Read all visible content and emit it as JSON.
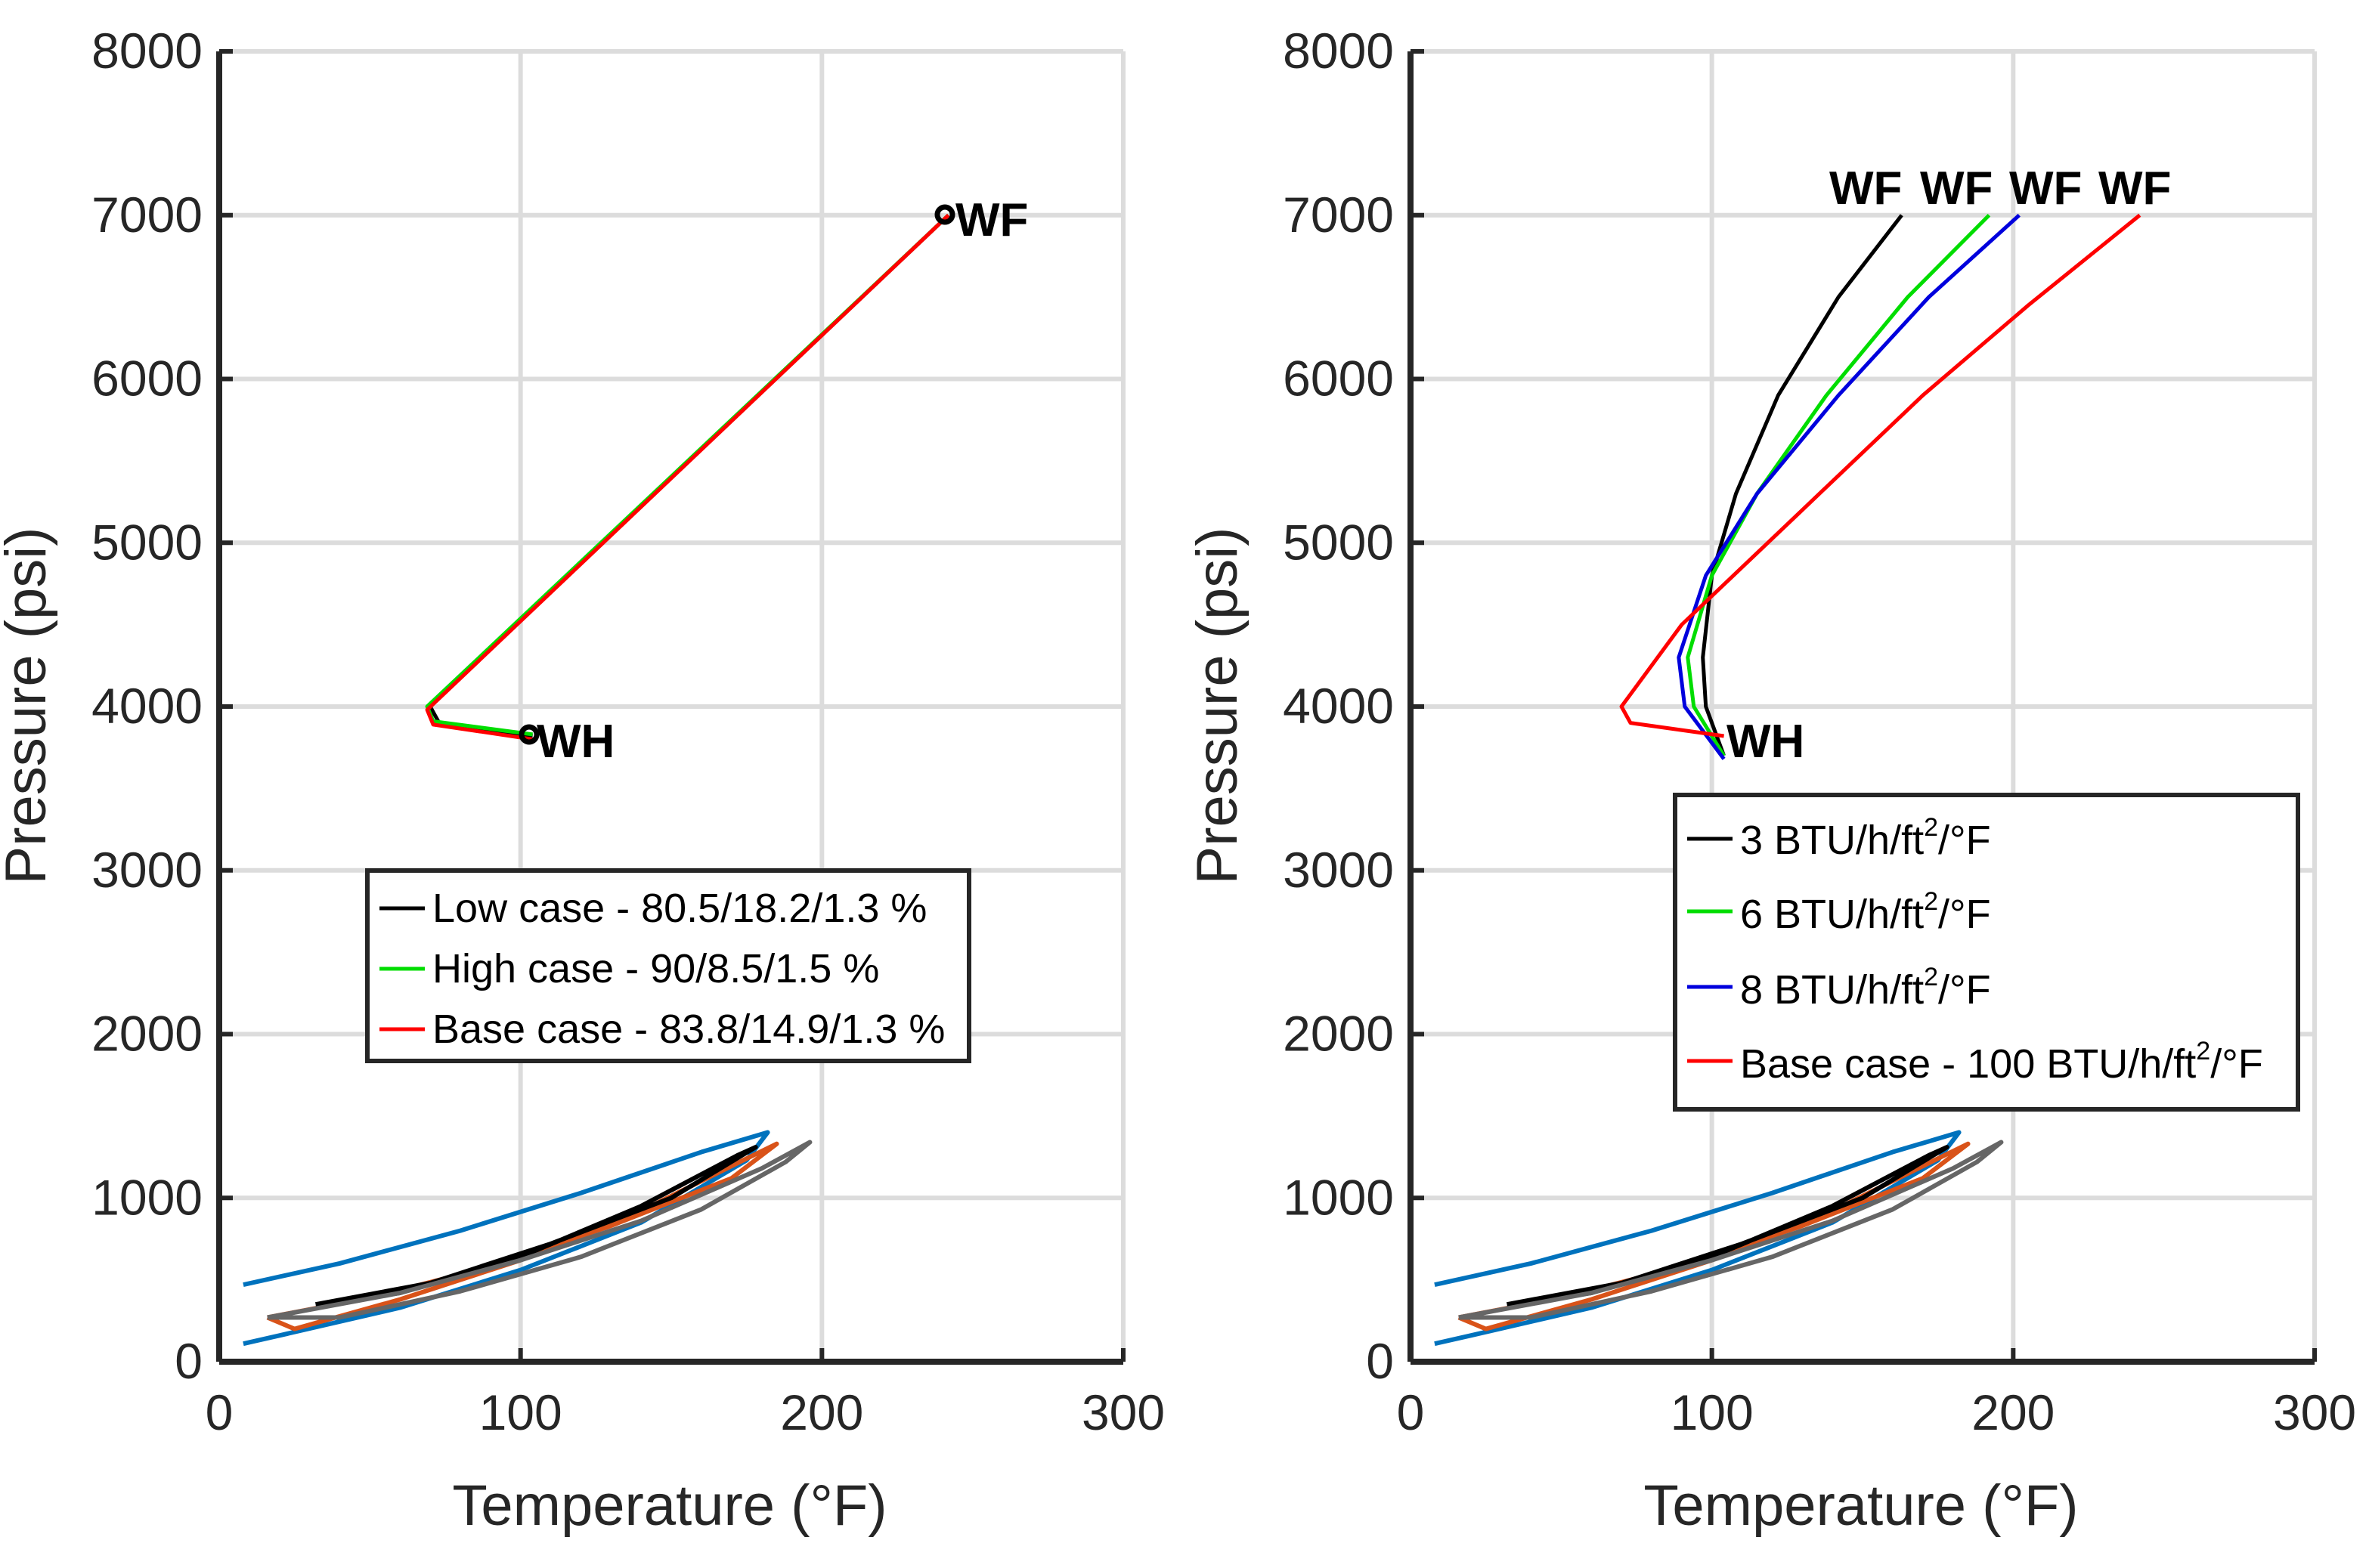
{
  "chart_data": [
    {
      "type": "line",
      "xlabel": "Temperature (°F)",
      "ylabel": "Pressure (psi)",
      "xlim": [
        0,
        300
      ],
      "ylim": [
        0,
        8000
      ],
      "xticks": [
        "0",
        "100",
        "200",
        "300"
      ],
      "yticks": [
        "0",
        "1000",
        "2000",
        "3000",
        "4000",
        "5000",
        "6000",
        "7000",
        "8000"
      ],
      "grid": true,
      "series": [
        {
          "name": "Low case - 80.5/18.2/1.3 %",
          "color": "#000000",
          "x": [
            242,
            70,
            73,
            104
          ],
          "y": [
            7000,
            4000,
            3900,
            3820
          ]
        },
        {
          "name": "High case - 90/8.5/1.5 %",
          "color": "#00dd00",
          "x": [
            242,
            69,
            71,
            104
          ],
          "y": [
            7000,
            4000,
            3910,
            3830
          ]
        },
        {
          "name": "Base case - 83.8/14.9/1.3 %",
          "color": "#ff0000",
          "x": [
            242,
            69,
            71,
            104
          ],
          "y": [
            7000,
            3980,
            3890,
            3800
          ]
        }
      ],
      "phase_envelopes": [
        {
          "color": "#0072bd",
          "x": [
            8,
            40,
            80,
            120,
            160,
            182,
            175,
            140,
            100,
            60,
            20,
            8
          ],
          "y": [
            470,
            600,
            800,
            1030,
            1280,
            1400,
            1230,
            850,
            560,
            330,
            160,
            110
          ]
        },
        {
          "color": "#d95319",
          "x": [
            16,
            50,
            90,
            130,
            170,
            185,
            175,
            140,
            100,
            60,
            25,
            16
          ],
          "y": [
            270,
            390,
            580,
            830,
            1120,
            1330,
            1240,
            920,
            620,
            380,
            200,
            270
          ]
        },
        {
          "color": "#000000",
          "x": [
            32,
            70,
            110,
            150,
            178,
            172,
            140,
            100,
            60,
            32
          ],
          "y": [
            350,
            480,
            720,
            1000,
            1310,
            1260,
            950,
            640,
            420,
            350
          ]
        },
        {
          "color": "#666666",
          "x": [
            16,
            60,
            100,
            140,
            180,
            196,
            188,
            160,
            120,
            80,
            40,
            16
          ],
          "y": [
            270,
            420,
            620,
            860,
            1180,
            1340,
            1220,
            930,
            640,
            430,
            270,
            270
          ]
        }
      ],
      "markers": [
        {
          "x": 242,
          "y": 7000,
          "label": "WF"
        },
        {
          "x": 104,
          "y": 3810,
          "label": "WH"
        }
      ],
      "legend": "center"
    },
    {
      "type": "line",
      "xlabel": "Temperature (°F)",
      "ylabel": "Pressure (psi)",
      "xlim": [
        0,
        300
      ],
      "ylim": [
        0,
        8000
      ],
      "xticks": [
        "0",
        "100",
        "200",
        "300"
      ],
      "yticks": [
        "0",
        "1000",
        "2000",
        "3000",
        "4000",
        "5000",
        "6000",
        "7000",
        "8000"
      ],
      "grid": true,
      "series": [
        {
          "name": "3 BTU/h/ft",
          "sup": "2",
          "tail": "/°F",
          "color": "#000000",
          "x": [
            104,
            98,
            97,
            100,
            108,
            122,
            142,
            163
          ],
          "y": [
            3700,
            4000,
            4300,
            4800,
            5300,
            5900,
            6500,
            7000
          ]
        },
        {
          "name": "6 BTU/h/ft",
          "sup": "2",
          "tail": "/°F",
          "color": "#00dd00",
          "x": [
            104,
            94,
            92,
            100,
            115,
            138,
            165,
            192
          ],
          "y": [
            3700,
            4000,
            4300,
            4800,
            5300,
            5900,
            6500,
            7000
          ]
        },
        {
          "name": "8 BTU/h/ft",
          "sup": "2",
          "tail": "/°F",
          "color": "#0000dd",
          "x": [
            104,
            91,
            89,
            98,
            115,
            142,
            172,
            202
          ],
          "y": [
            3680,
            4000,
            4300,
            4800,
            5300,
            5900,
            6500,
            7000
          ]
        },
        {
          "name": "Base case - 100 BTU/h/ft",
          "sup": "2",
          "tail": "/°F",
          "color": "#ff0000",
          "x": [
            104,
            73,
            70,
            90,
            130,
            170,
            205,
            242
          ],
          "y": [
            3820,
            3900,
            4000,
            4500,
            5200,
            5900,
            6450,
            7000
          ]
        }
      ],
      "phase_envelopes": [
        {
          "color": "#0072bd",
          "x": [
            8,
            40,
            80,
            120,
            160,
            182,
            175,
            140,
            100,
            60,
            20,
            8
          ],
          "y": [
            470,
            600,
            800,
            1030,
            1280,
            1400,
            1230,
            850,
            560,
            330,
            160,
            110
          ]
        },
        {
          "color": "#d95319",
          "x": [
            16,
            50,
            90,
            130,
            170,
            185,
            175,
            140,
            100,
            60,
            25,
            16
          ],
          "y": [
            270,
            390,
            580,
            830,
            1120,
            1330,
            1240,
            920,
            620,
            380,
            200,
            270
          ]
        },
        {
          "color": "#000000",
          "x": [
            32,
            70,
            110,
            150,
            178,
            172,
            140,
            100,
            60,
            32
          ],
          "y": [
            350,
            480,
            720,
            1000,
            1310,
            1260,
            950,
            640,
            420,
            350
          ]
        },
        {
          "color": "#666666",
          "x": [
            16,
            60,
            100,
            140,
            180,
            196,
            188,
            160,
            120,
            80,
            40,
            16
          ],
          "y": [
            270,
            420,
            620,
            860,
            1180,
            1340,
            1220,
            930,
            640,
            430,
            270,
            270
          ]
        }
      ],
      "wf_labels": [
        "WF",
        "WF",
        "WF",
        "WF"
      ],
      "wh_label": "WH",
      "legend": "center-right"
    }
  ]
}
